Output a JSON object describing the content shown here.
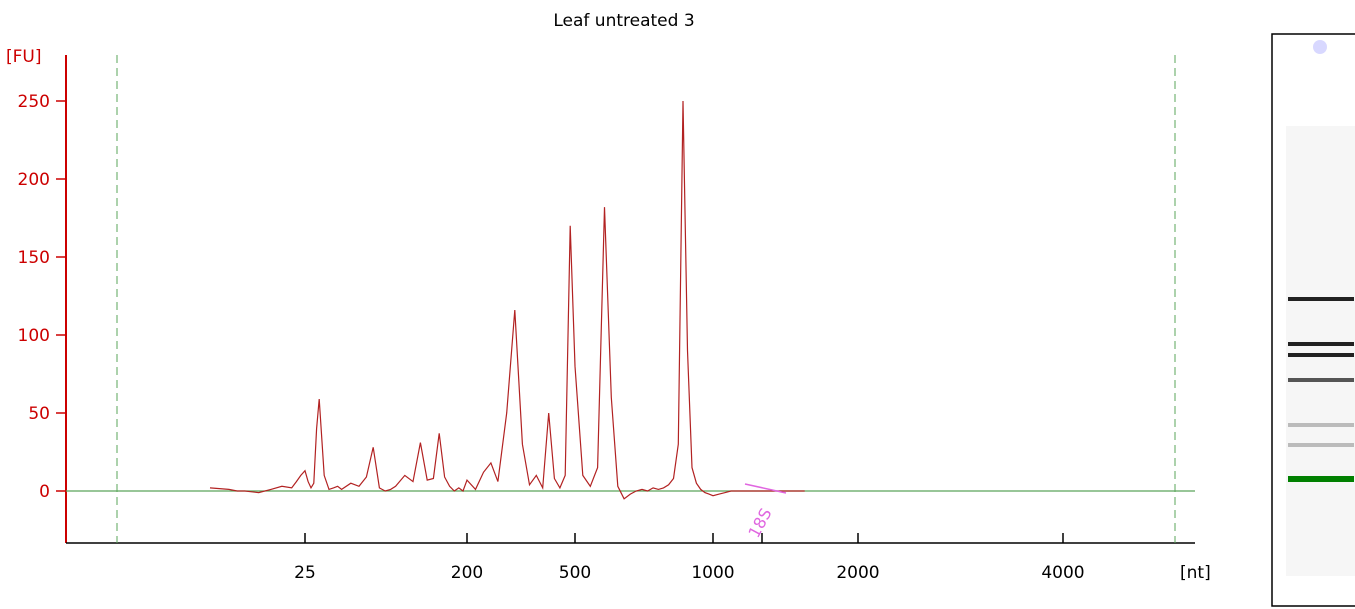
{
  "chart_data": {
    "type": "line",
    "title": "Leaf untreated 3",
    "ylabel": "[FU]",
    "xlabel": "[nt]",
    "ylim": [
      -30,
      270
    ],
    "yticks": [
      0,
      50,
      100,
      150,
      200,
      250
    ],
    "xticks": [
      25,
      200,
      500,
      1000,
      2000,
      4000
    ],
    "x_scale": "ladder (nonlinear)",
    "ladder_markers": [
      {
        "nt": 25
      },
      {
        "nt": 200
      },
      {
        "nt": 500
      },
      {
        "nt": 1000
      },
      {
        "nt": 2000
      },
      {
        "nt": 4000
      }
    ],
    "annotations": [
      {
        "text": "18S",
        "nt": 1350
      }
    ],
    "series": [
      {
        "x": [
          10,
          12,
          13,
          14,
          16,
          18,
          20,
          22,
          23,
          24,
          25,
          26,
          27,
          28,
          29,
          30,
          32,
          34,
          36,
          38,
          40,
          45,
          50,
          55,
          60,
          65,
          70,
          75,
          80,
          90,
          100,
          110,
          120,
          130,
          140,
          150,
          160,
          170,
          180,
          190,
          200,
          215,
          230,
          245,
          260,
          280,
          300,
          320,
          340,
          360,
          380,
          400,
          420,
          440,
          460,
          480,
          500,
          520,
          540,
          560,
          580,
          600,
          620,
          640,
          660,
          680,
          700,
          720,
          740,
          760,
          780,
          800,
          820,
          840,
          860,
          880,
          900,
          920,
          940,
          960,
          980,
          1000,
          1030,
          1060,
          1090,
          1120,
          1150,
          1180,
          1210,
          1240,
          1270,
          1300,
          1330,
          1360,
          1400,
          1450,
          1500,
          1550
        ],
        "values": [
          2,
          1,
          0,
          0,
          -1,
          1,
          3,
          2,
          6,
          10,
          13,
          6,
          2,
          5,
          40,
          59,
          10,
          1,
          2,
          3,
          1,
          5,
          3,
          9,
          28,
          2,
          0,
          1,
          3,
          10,
          6,
          31,
          7,
          8,
          37,
          9,
          3,
          0,
          2,
          0,
          7,
          1,
          12,
          18,
          6,
          50,
          116,
          30,
          4,
          10,
          2,
          50,
          8,
          2,
          10,
          170,
          80,
          10,
          3,
          15,
          182,
          60,
          3,
          -5,
          -2,
          0,
          1,
          0,
          2,
          1,
          2,
          4,
          8,
          30,
          250,
          90,
          15,
          5,
          1,
          -1,
          -2,
          -3,
          -2,
          -1,
          0,
          0,
          0,
          0,
          0,
          0,
          0,
          0,
          0,
          0,
          0,
          0,
          0,
          0
        ]
      }
    ],
    "colors": {
      "trace": "#b22222",
      "baseline": "#5aa55a",
      "yaxis": "#cc0000",
      "dashed_marker": "#5aa55a",
      "peak_label": "#e066e0",
      "gel_green_band": "#008000"
    },
    "gel": {
      "bands": [
        {
          "shade": "dark"
        },
        {
          "shade": "dark"
        },
        {
          "shade": "dark"
        },
        {
          "shade": "medium"
        },
        {
          "shade": "light"
        },
        {
          "shade": "light"
        },
        {
          "shade": "green"
        }
      ]
    }
  }
}
